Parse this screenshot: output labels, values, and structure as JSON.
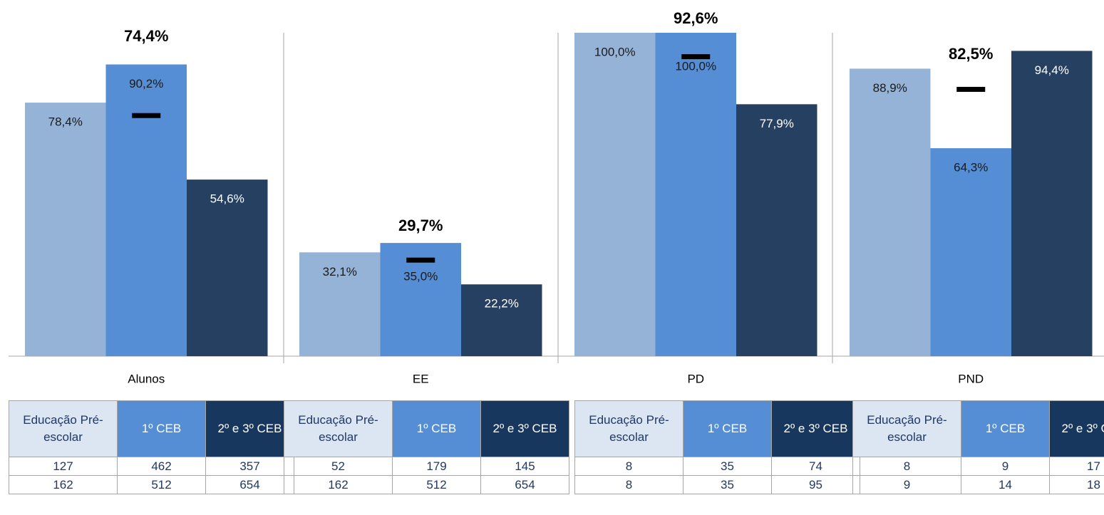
{
  "chart_data": {
    "type": "bar",
    "categories": [
      "Alunos",
      "EE",
      "PD",
      "PND"
    ],
    "series": [
      {
        "name": "Educação Pré-escolar",
        "color": "#95b3d7",
        "values": [
          78.4,
          32.1,
          100.0,
          88.9
        ],
        "value_labels": [
          "78,4%",
          "32,1%",
          "100,0%",
          "88,9%"
        ]
      },
      {
        "name": "1º CEB",
        "color": "#558ed5",
        "values": [
          90.2,
          35.0,
          100.0,
          64.3
        ],
        "value_labels": [
          "90,2%",
          "35,0%",
          "100,0%",
          "64,3%"
        ]
      },
      {
        "name": "2º e 3º CEB",
        "color": "#254061",
        "values": [
          54.6,
          22.2,
          77.9,
          94.4
        ],
        "value_labels": [
          "54,6%",
          "22,2%",
          "77,9%",
          "94,4%"
        ]
      }
    ],
    "overall": {
      "color": "#000000",
      "values": [
        74.4,
        29.7,
        92.6,
        82.5
      ],
      "value_labels": [
        "74,4%",
        "29,7%",
        "92,6%",
        "82,5%"
      ]
    },
    "ylim": [
      0,
      100
    ]
  },
  "tables": [
    {
      "rows": [
        [
          127,
          462,
          357
        ],
        [
          162,
          512,
          654
        ]
      ]
    },
    {
      "rows": [
        [
          52,
          179,
          145
        ],
        [
          162,
          512,
          654
        ]
      ]
    },
    {
      "rows": [
        [
          8,
          35,
          74
        ],
        [
          8,
          35,
          95
        ]
      ]
    },
    {
      "rows": [
        [
          8,
          9,
          17
        ],
        [
          9,
          14,
          18
        ]
      ]
    }
  ]
}
